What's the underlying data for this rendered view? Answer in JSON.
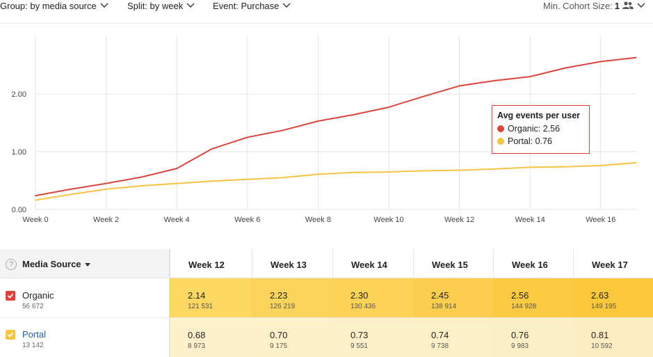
{
  "toolbar": {
    "group_label": "Group: by media source",
    "split_label": "Split: by week",
    "event_label": "Event: Purchase",
    "min_cohort_label": "Min. Cohort Size:",
    "min_cohort_value": "1"
  },
  "colors": {
    "organic": "#d9453d",
    "portal": "#f6c444",
    "grid": "#e3e3e3",
    "cell_organic": "#fcd560",
    "cell_organic_strong": "#fcc83a",
    "cell_portal": "#fdf0c8"
  },
  "chart_data": {
    "type": "line",
    "x": [
      "Week 0",
      "Week 1",
      "Week 2",
      "Week 3",
      "Week 4",
      "Week 5",
      "Week 6",
      "Week 7",
      "Week 8",
      "Week 9",
      "Week 10",
      "Week 11",
      "Week 12",
      "Week 13",
      "Week 14",
      "Week 15",
      "Week 16",
      "Week 17"
    ],
    "x_tick_labels": [
      "Week 0",
      "Week 2",
      "Week 4",
      "Week 6",
      "Week 8",
      "Week 10",
      "Week 12",
      "Week 14",
      "Week 16"
    ],
    "y_tick_labels": [
      "0.00",
      "1.00",
      "2.00"
    ],
    "ylim": [
      0,
      2.9
    ],
    "grid": true,
    "series": [
      {
        "name": "Organic",
        "color": "#d9453d",
        "values": [
          0.24,
          0.35,
          0.45,
          0.56,
          0.71,
          1.05,
          1.25,
          1.37,
          1.53,
          1.64,
          1.77,
          1.96,
          2.14,
          2.23,
          2.3,
          2.45,
          2.56,
          2.63
        ]
      },
      {
        "name": "Portal",
        "color": "#f6c444",
        "values": [
          0.16,
          0.26,
          0.35,
          0.41,
          0.45,
          0.49,
          0.52,
          0.55,
          0.61,
          0.64,
          0.65,
          0.67,
          0.68,
          0.7,
          0.73,
          0.74,
          0.76,
          0.81
        ]
      }
    ],
    "tooltip": {
      "title": "Avg events per user",
      "rows": [
        {
          "label": "Organic: 2.56",
          "color": "#d9453d"
        },
        {
          "label": "Portal: 0.76",
          "color": "#f6c444"
        }
      ]
    }
  },
  "table": {
    "header_label": "Media Source",
    "help_symbol": "?",
    "columns": [
      "Week 12",
      "Week 13",
      "Week 14",
      "Week 15",
      "Week 16",
      "Week 17"
    ],
    "rows": [
      {
        "name": "Organic",
        "count": "56 672",
        "cells": [
          {
            "value": "2.14",
            "count": "121 531"
          },
          {
            "value": "2.23",
            "count": "126 219"
          },
          {
            "value": "2.30",
            "count": "130 436"
          },
          {
            "value": "2.45",
            "count": "138 914"
          },
          {
            "value": "2.56",
            "count": "144 928"
          },
          {
            "value": "2.63",
            "count": "149 195"
          }
        ]
      },
      {
        "name": "Portal",
        "count": "13 142",
        "cells": [
          {
            "value": "0.68",
            "count": "8 973"
          },
          {
            "value": "0.70",
            "count": "9 175"
          },
          {
            "value": "0.73",
            "count": "9 551"
          },
          {
            "value": "0.74",
            "count": "9 738"
          },
          {
            "value": "0.76",
            "count": "9 983"
          },
          {
            "value": "0.81",
            "count": "10 592"
          }
        ]
      }
    ]
  }
}
